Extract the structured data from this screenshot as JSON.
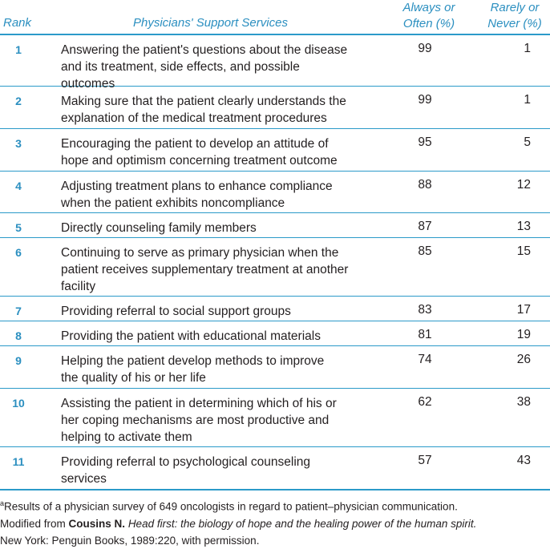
{
  "header": {
    "rank": "Rank",
    "services": "Physicians' Support Services",
    "always_line1": "Always or",
    "always_line2": "Often (%)",
    "rarely_line1": "Rarely or",
    "rarely_line2": "Never (%)"
  },
  "rows": [
    {
      "rank": "1",
      "line1": "Answering the patient's questions about the disease",
      "line2": "and its treatment, side effects, and possible",
      "line3": "outcomes",
      "always": "99",
      "rarely": "1"
    },
    {
      "rank": "2",
      "line1": "Making sure that the patient clearly understands the",
      "line2": "explanation of the medical treatment procedures",
      "line3": "",
      "always": "99",
      "rarely": "1"
    },
    {
      "rank": "3",
      "line1": "Encouraging the patient to develop an attitude of",
      "line2": "hope and optimism concerning treatment outcome",
      "line3": "",
      "always": "95",
      "rarely": "5"
    },
    {
      "rank": "4",
      "line1": "Adjusting treatment plans to enhance compliance",
      "line2": "when the patient exhibits noncompliance",
      "line3": "",
      "always": "88",
      "rarely": "12"
    },
    {
      "rank": "5",
      "line1": "Directly counseling family members",
      "line2": "",
      "line3": "",
      "always": "87",
      "rarely": "13"
    },
    {
      "rank": "6",
      "line1": "Continuing to serve as primary physician when the",
      "line2": "patient receives supplementary treatment at another",
      "line3": "facility",
      "always": "85",
      "rarely": "15"
    },
    {
      "rank": "7",
      "line1": "Providing referral to social support groups",
      "line2": "",
      "line3": "",
      "always": "83",
      "rarely": "17"
    },
    {
      "rank": "8",
      "line1": "Providing the patient with educational materials",
      "line2": "",
      "line3": "",
      "always": "81",
      "rarely": "19"
    },
    {
      "rank": "9",
      "line1": "Helping the patient develop methods to improve",
      "line2": "the quality of his or her life",
      "line3": "",
      "always": "74",
      "rarely": "26"
    },
    {
      "rank": "10",
      "line1": "Assisting the patient in determining which of his or",
      "line2": "her coping mechanisms are most productive and",
      "line3": "helping to activate them",
      "always": "62",
      "rarely": "38"
    },
    {
      "rank": "11",
      "line1": "Providing referral to psychological counseling",
      "line2": "services",
      "line3": "",
      "always": "57",
      "rarely": "43"
    }
  ],
  "footnote": {
    "marker": "a",
    "text": "Results of a physician survey of 649 oncologists in regard to patient–physician communication.",
    "modified_prefix": "Modified from ",
    "author": "Cousins N.",
    "book_title": "Head first: the biology of hope and the healing power of the human spirit.",
    "publisher": "New York: Penguin Books, 1989:220, with permission."
  },
  "colors": {
    "accent": "#2b8fc0",
    "rule": "#2b9ac9",
    "text": "#231f20"
  }
}
